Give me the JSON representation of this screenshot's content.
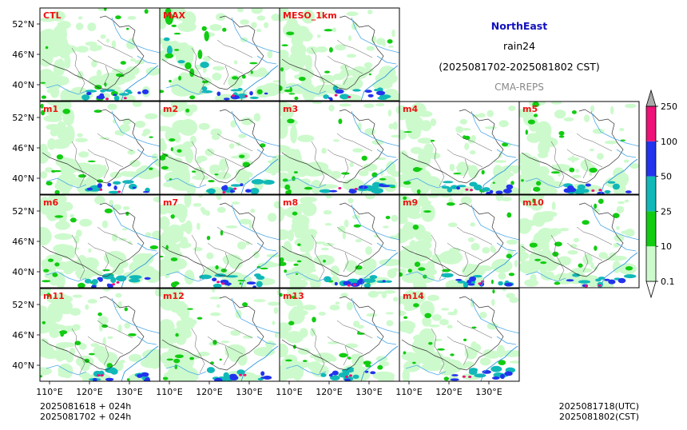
{
  "header": {
    "region": "NorthEast",
    "variable": "rain24",
    "period": "(2025081702-2025081802 CST)",
    "source": "CMA-REPS"
  },
  "panels": [
    {
      "label": "CTL"
    },
    {
      "label": "MAX"
    },
    {
      "label": "MESO_1km"
    },
    {
      "label": "m1"
    },
    {
      "label": "m2"
    },
    {
      "label": "m3"
    },
    {
      "label": "m4"
    },
    {
      "label": "m5"
    },
    {
      "label": "m6"
    },
    {
      "label": "m7"
    },
    {
      "label": "m8"
    },
    {
      "label": "m9"
    },
    {
      "label": "m10"
    },
    {
      "label": "m11"
    },
    {
      "label": "m12"
    },
    {
      "label": "m13"
    },
    {
      "label": "m14"
    }
  ],
  "axes": {
    "lat_ticks": [
      "52°N",
      "46°N",
      "40°N"
    ],
    "lon_ticks": [
      "110°E",
      "120°E",
      "130°E"
    ]
  },
  "colorbar": {
    "levels": [
      "0.1",
      "10",
      "25",
      "50",
      "100",
      "250"
    ],
    "colors": [
      "#ccfacc",
      "#11cc11",
      "#11b8b8",
      "#2233ee",
      "#ee1177"
    ],
    "under_color": "#ffffff",
    "over_color": "#aaaaaa"
  },
  "footer": {
    "init_line1": "2025081618  +  024h",
    "init_line2": "2025081702  +  024h",
    "valid_utc": "2025081718(UTC)",
    "valid_cst": "2025081802(CST)"
  }
}
